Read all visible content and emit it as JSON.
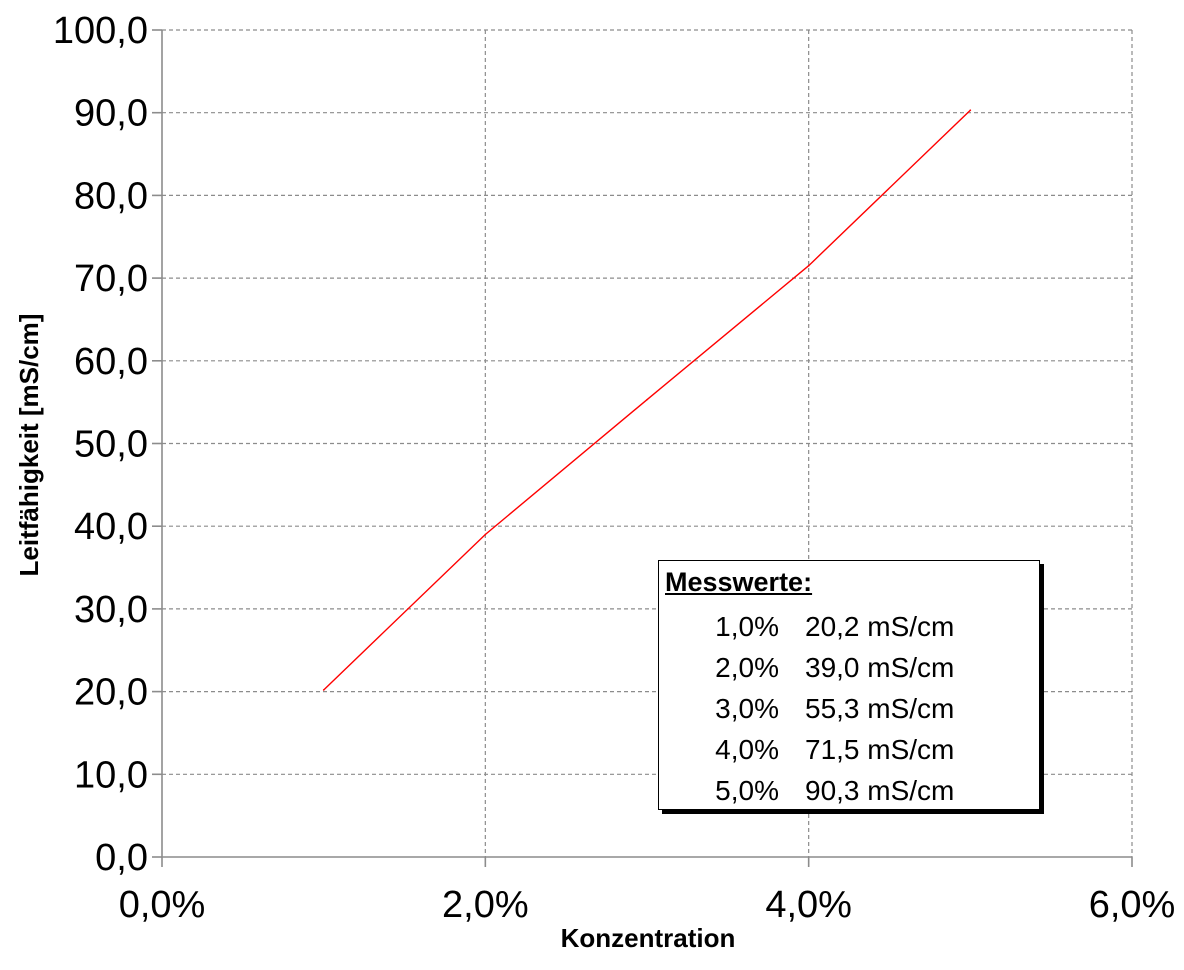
{
  "chart_data": {
    "type": "line",
    "xlabel": "Konzentration",
    "ylabel": "Leitfähigkeit  [mS/cm]",
    "xlim": [
      0,
      6
    ],
    "ylim": [
      0,
      100
    ],
    "x_ticks": [
      "0,0%",
      "2,0%",
      "4,0%",
      "6,0%"
    ],
    "y_ticks": [
      "0,0",
      "10,0",
      "20,0",
      "30,0",
      "40,0",
      "50,0",
      "60,0",
      "70,0",
      "80,0",
      "90,0",
      "100,0"
    ],
    "grid": true,
    "series": [
      {
        "x": [
          1,
          2,
          3,
          4,
          5
        ],
        "y": [
          20.2,
          39.0,
          55.3,
          71.5,
          90.3
        ],
        "color": "#ff0000"
      }
    ],
    "legend": {
      "title": "Messwerte:",
      "rows": [
        {
          "pct": "1,0%",
          "value": "20,2 mS/cm"
        },
        {
          "pct": "2,0%",
          "value": "39,0 mS/cm"
        },
        {
          "pct": "3,0%",
          "value": "55,3 mS/cm"
        },
        {
          "pct": "4,0%",
          "value": "71,5 mS/cm"
        },
        {
          "pct": "5,0%",
          "value": "90,3 mS/cm"
        }
      ]
    }
  }
}
